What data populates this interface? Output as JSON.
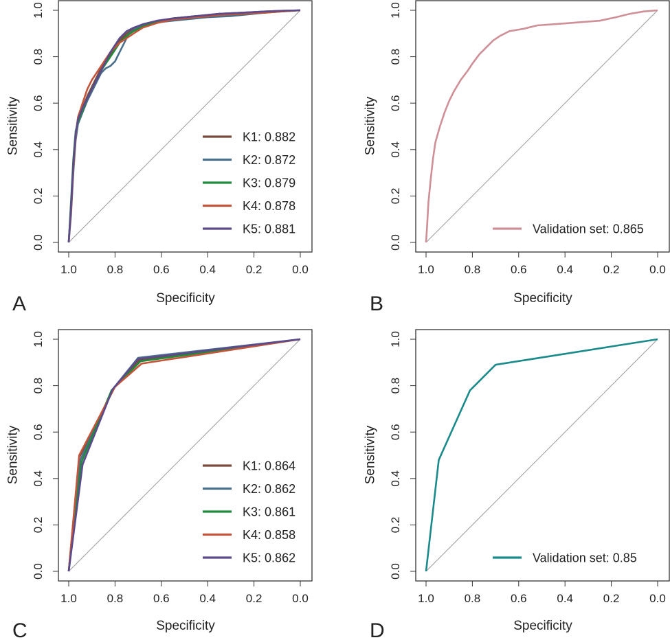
{
  "chart_data": [
    {
      "panel": "A",
      "type": "line",
      "xlabel": "Specificity",
      "ylabel": "Sensitivity",
      "xlim": [
        1.0,
        0.0
      ],
      "ylim": [
        0.0,
        1.0
      ],
      "x_ticks": [
        "1.0",
        "0.8",
        "0.6",
        "0.4",
        "0.2",
        "0.0"
      ],
      "y_ticks": [
        "0.0",
        "0.2",
        "0.4",
        "0.6",
        "0.8",
        "1.0"
      ],
      "diagonal": true,
      "legend_position": "bottom-right",
      "series": [
        {
          "key": "K1",
          "name": "K1",
          "auc": "0.882",
          "color": "#7a4a3c",
          "spec": [
            1.0,
            0.99,
            0.98,
            0.97,
            0.96,
            0.94,
            0.92,
            0.9,
            0.88,
            0.86,
            0.84,
            0.82,
            0.8,
            0.78,
            0.75,
            0.72,
            0.68,
            0.62,
            0.55,
            0.45,
            0.35,
            0.25,
            0.15,
            0.08,
            0.0
          ],
          "sens": [
            0.0,
            0.15,
            0.33,
            0.47,
            0.53,
            0.58,
            0.63,
            0.67,
            0.71,
            0.75,
            0.78,
            0.81,
            0.84,
            0.87,
            0.9,
            0.92,
            0.935,
            0.95,
            0.965,
            0.975,
            0.985,
            0.99,
            0.995,
            0.998,
            1.0
          ]
        },
        {
          "key": "K2",
          "name": "K2",
          "auc": "0.872",
          "color": "#4a6f8a",
          "spec": [
            1.0,
            0.99,
            0.98,
            0.97,
            0.96,
            0.94,
            0.92,
            0.9,
            0.88,
            0.86,
            0.84,
            0.82,
            0.8,
            0.78,
            0.76,
            0.74,
            0.71,
            0.67,
            0.6,
            0.5,
            0.4,
            0.3,
            0.2,
            0.1,
            0.0
          ],
          "sens": [
            0.0,
            0.12,
            0.3,
            0.44,
            0.51,
            0.56,
            0.61,
            0.65,
            0.69,
            0.73,
            0.75,
            0.76,
            0.78,
            0.82,
            0.86,
            0.9,
            0.92,
            0.935,
            0.95,
            0.96,
            0.97,
            0.975,
            0.985,
            0.995,
            1.0
          ]
        },
        {
          "key": "K3",
          "name": "K3",
          "auc": "0.879",
          "color": "#1f8a3a",
          "spec": [
            1.0,
            0.99,
            0.98,
            0.97,
            0.96,
            0.94,
            0.92,
            0.9,
            0.88,
            0.86,
            0.84,
            0.82,
            0.8,
            0.78,
            0.75,
            0.72,
            0.68,
            0.62,
            0.55,
            0.45,
            0.35,
            0.25,
            0.15,
            0.08,
            0.0
          ],
          "sens": [
            0.0,
            0.18,
            0.36,
            0.48,
            0.52,
            0.57,
            0.62,
            0.66,
            0.7,
            0.74,
            0.77,
            0.8,
            0.83,
            0.86,
            0.89,
            0.91,
            0.93,
            0.95,
            0.965,
            0.975,
            0.98,
            0.985,
            0.99,
            0.995,
            1.0
          ]
        },
        {
          "key": "K4",
          "name": "K4",
          "auc": "0.878",
          "color": "#c4553a",
          "spec": [
            1.0,
            0.99,
            0.98,
            0.97,
            0.96,
            0.94,
            0.92,
            0.9,
            0.88,
            0.86,
            0.84,
            0.82,
            0.8,
            0.78,
            0.75,
            0.72,
            0.68,
            0.62,
            0.55,
            0.45,
            0.35,
            0.25,
            0.15,
            0.08,
            0.0
          ],
          "sens": [
            0.0,
            0.14,
            0.32,
            0.46,
            0.54,
            0.6,
            0.66,
            0.7,
            0.73,
            0.76,
            0.79,
            0.82,
            0.84,
            0.86,
            0.88,
            0.9,
            0.925,
            0.945,
            0.96,
            0.97,
            0.98,
            0.985,
            0.99,
            0.995,
            1.0
          ]
        },
        {
          "key": "K5",
          "name": "K5",
          "auc": "0.881",
          "color": "#5b4a8c",
          "spec": [
            1.0,
            0.99,
            0.98,
            0.97,
            0.96,
            0.94,
            0.92,
            0.9,
            0.88,
            0.86,
            0.84,
            0.82,
            0.8,
            0.78,
            0.75,
            0.72,
            0.68,
            0.62,
            0.55,
            0.45,
            0.35,
            0.25,
            0.15,
            0.08,
            0.0
          ],
          "sens": [
            0.0,
            0.16,
            0.34,
            0.47,
            0.53,
            0.58,
            0.62,
            0.66,
            0.7,
            0.74,
            0.78,
            0.82,
            0.85,
            0.88,
            0.91,
            0.925,
            0.94,
            0.955,
            0.965,
            0.975,
            0.985,
            0.99,
            0.995,
            0.998,
            1.0
          ]
        }
      ]
    },
    {
      "panel": "B",
      "type": "line",
      "xlabel": "Specificity",
      "ylabel": "Sensitivity",
      "xlim": [
        1.0,
        0.0
      ],
      "ylim": [
        0.0,
        1.0
      ],
      "x_ticks": [
        "1.0",
        "0.8",
        "0.6",
        "0.4",
        "0.2",
        "0.0"
      ],
      "y_ticks": [
        "0.0",
        "0.2",
        "0.4",
        "0.6",
        "0.8",
        "1.0"
      ],
      "diagonal": true,
      "legend_position": "bottom-right",
      "series": [
        {
          "key": "V",
          "name": "Validation set",
          "auc": "0.865",
          "color": "#cf8f96",
          "spec": [
            1.0,
            0.995,
            0.99,
            0.98,
            0.97,
            0.96,
            0.94,
            0.92,
            0.9,
            0.88,
            0.85,
            0.82,
            0.8,
            0.77,
            0.74,
            0.71,
            0.68,
            0.64,
            0.58,
            0.52,
            0.45,
            0.38,
            0.32,
            0.25,
            0.18,
            0.12,
            0.06,
            0.0
          ],
          "sens": [
            0.0,
            0.08,
            0.17,
            0.27,
            0.36,
            0.43,
            0.5,
            0.56,
            0.61,
            0.65,
            0.7,
            0.74,
            0.77,
            0.81,
            0.84,
            0.87,
            0.89,
            0.91,
            0.92,
            0.935,
            0.94,
            0.945,
            0.95,
            0.955,
            0.97,
            0.985,
            0.995,
            1.0
          ]
        }
      ]
    },
    {
      "panel": "C",
      "type": "line",
      "xlabel": "Specificity",
      "ylabel": "Sensitivity",
      "xlim": [
        1.0,
        0.0
      ],
      "ylim": [
        0.0,
        1.0
      ],
      "x_ticks": [
        "1.0",
        "0.8",
        "0.6",
        "0.4",
        "0.2",
        "0.0"
      ],
      "y_ticks": [
        "0.0",
        "0.2",
        "0.4",
        "0.6",
        "0.8",
        "1.0"
      ],
      "diagonal": true,
      "legend_position": "bottom-right",
      "series": [
        {
          "key": "K1",
          "name": "K1",
          "auc": "0.864",
          "color": "#7a4a3c",
          "spec": [
            1.0,
            0.955,
            0.805,
            0.695,
            0.0
          ],
          "sens": [
            0.0,
            0.49,
            0.79,
            0.91,
            1.0
          ]
        },
        {
          "key": "K2",
          "name": "K2",
          "auc": "0.862",
          "color": "#4a6f8a",
          "spec": [
            1.0,
            0.95,
            0.81,
            0.7,
            0.0
          ],
          "sens": [
            0.0,
            0.48,
            0.785,
            0.92,
            1.0
          ]
        },
        {
          "key": "K3",
          "name": "K3",
          "auc": "0.861",
          "color": "#1f8a3a",
          "spec": [
            1.0,
            0.945,
            0.815,
            0.69,
            0.0
          ],
          "sens": [
            0.0,
            0.47,
            0.78,
            0.905,
            1.0
          ]
        },
        {
          "key": "K4",
          "name": "K4",
          "auc": "0.858",
          "color": "#c4553a",
          "spec": [
            1.0,
            0.955,
            0.8,
            0.685,
            0.0
          ],
          "sens": [
            0.0,
            0.5,
            0.795,
            0.895,
            1.0
          ]
        },
        {
          "key": "K5",
          "name": "K5",
          "auc": "0.862",
          "color": "#5b4a8c",
          "spec": [
            1.0,
            0.94,
            0.81,
            0.7,
            0.0
          ],
          "sens": [
            0.0,
            0.46,
            0.785,
            0.915,
            1.0
          ]
        }
      ]
    },
    {
      "panel": "D",
      "type": "line",
      "xlabel": "Specificity",
      "ylabel": "Sensitivity",
      "xlim": [
        1.0,
        0.0
      ],
      "ylim": [
        0.0,
        1.0
      ],
      "x_ticks": [
        "1.0",
        "0.8",
        "0.6",
        "0.4",
        "0.2",
        "0.0"
      ],
      "y_ticks": [
        "0.0",
        "0.2",
        "0.4",
        "0.6",
        "0.8",
        "1.0"
      ],
      "diagonal": true,
      "legend_position": "bottom-right",
      "series": [
        {
          "key": "V",
          "name": "Validation set",
          "auc": "0.85",
          "color": "#1a8a8a",
          "spec": [
            1.0,
            0.945,
            0.81,
            0.7,
            0.0
          ],
          "sens": [
            0.0,
            0.48,
            0.78,
            0.89,
            1.0
          ]
        }
      ]
    }
  ]
}
